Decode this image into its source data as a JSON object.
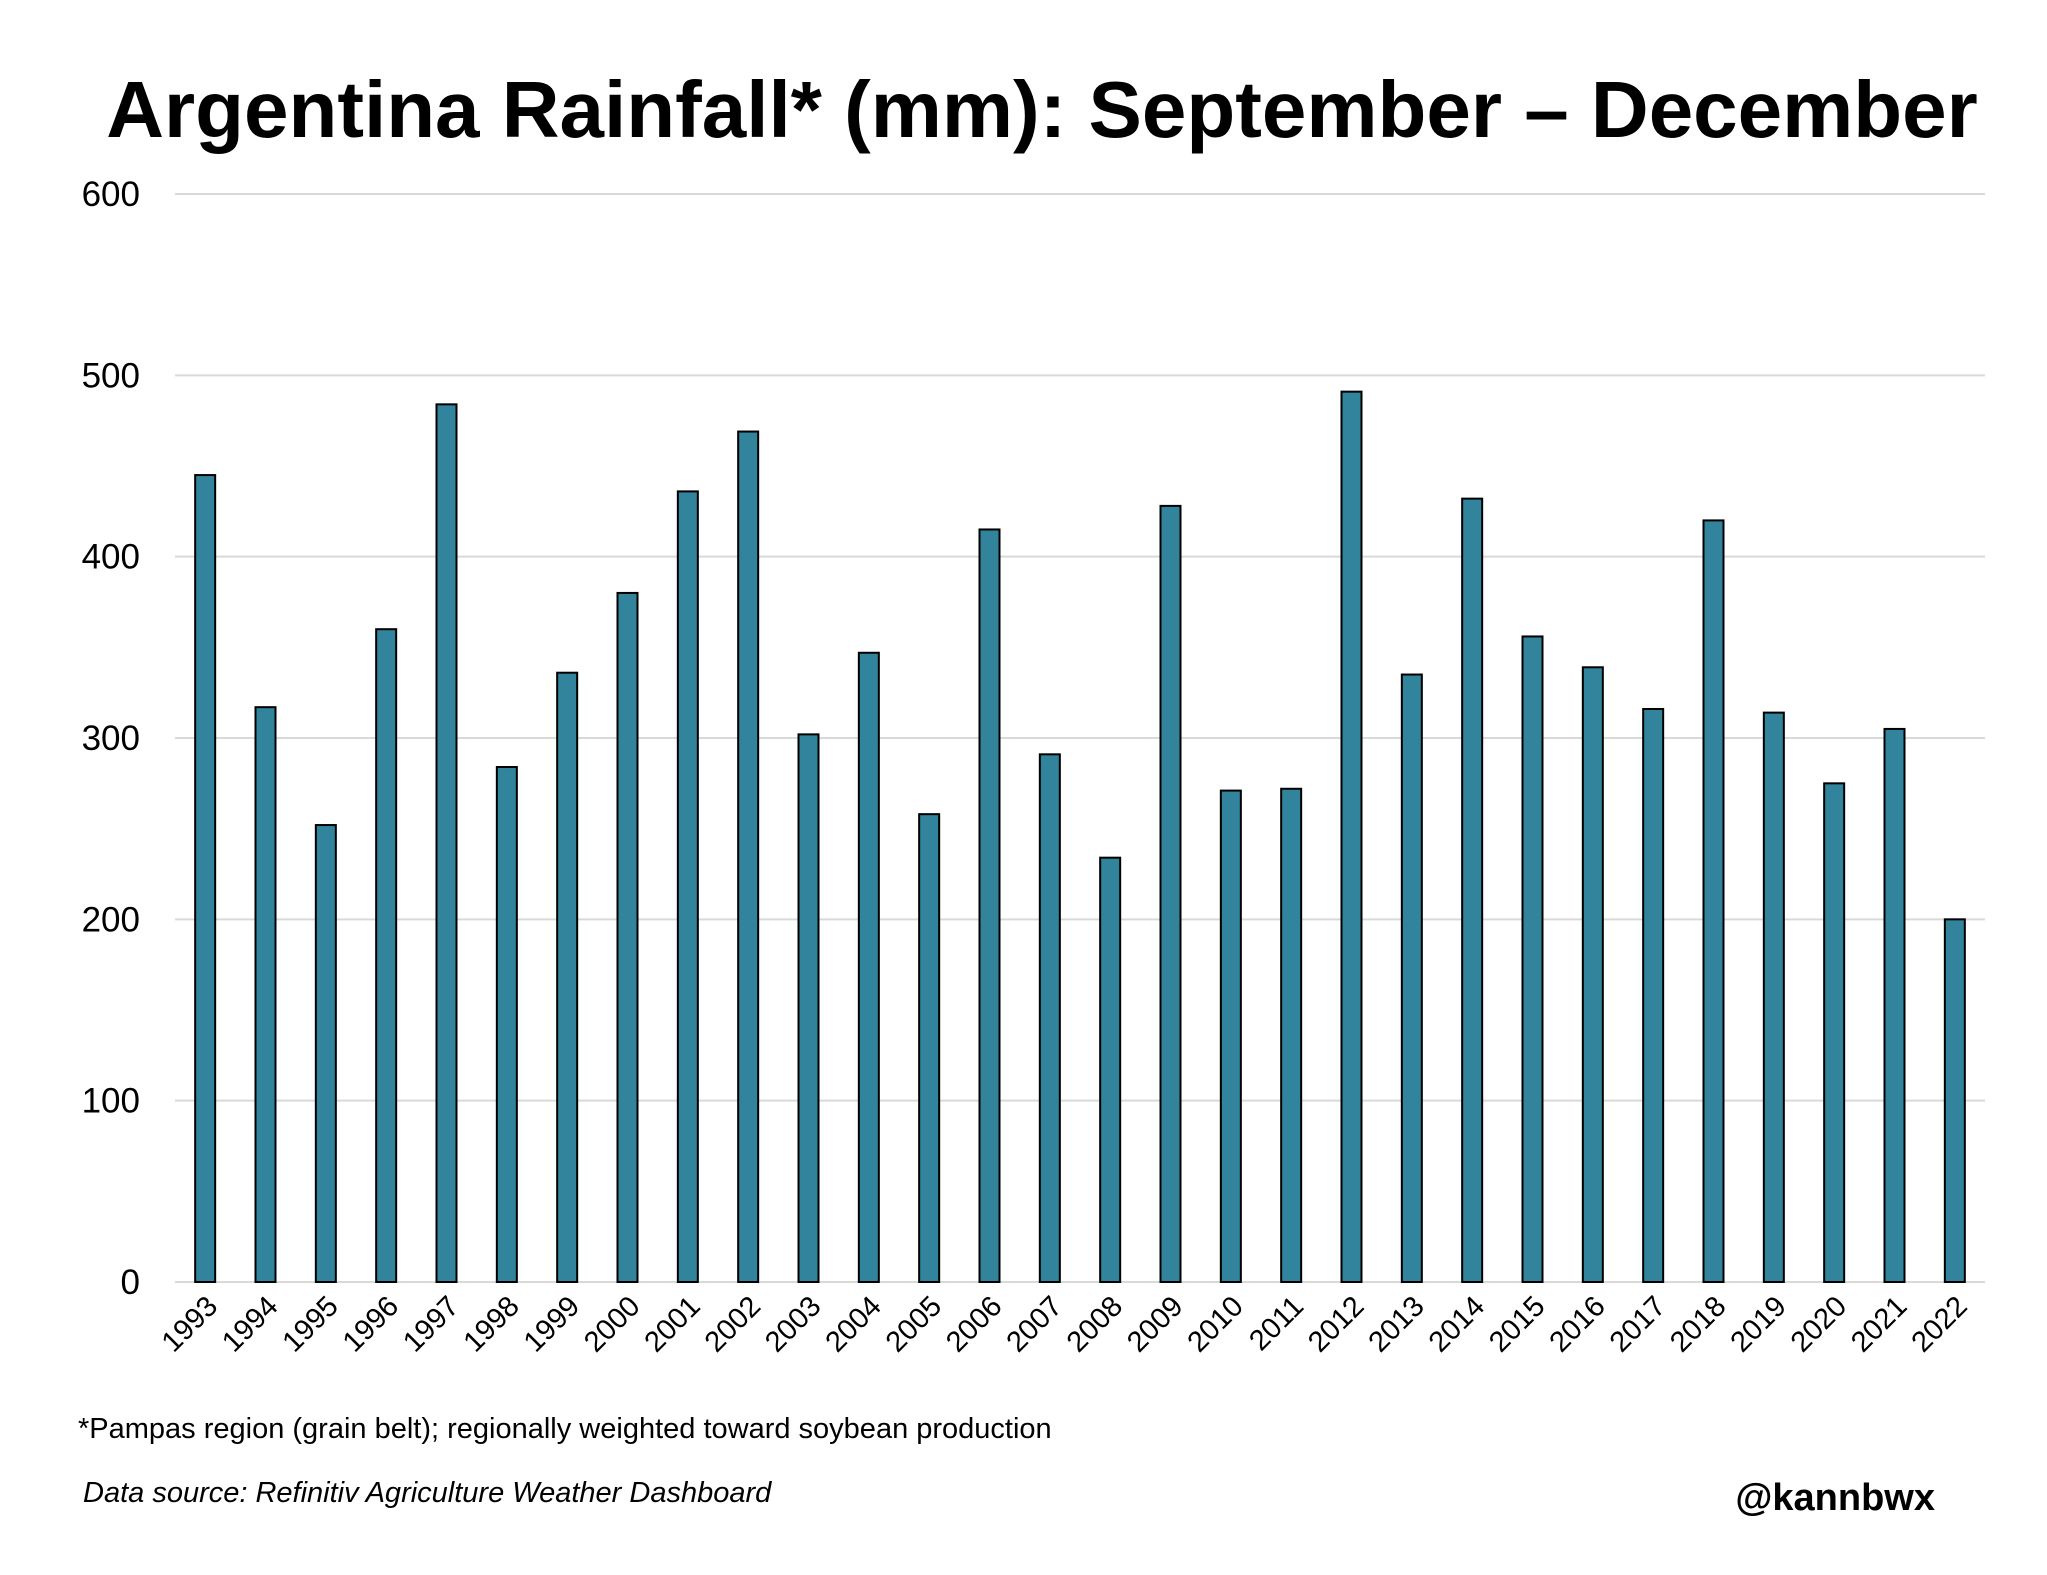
{
  "colors": {
    "bar_fill": "#31849B",
    "bar_stroke": "#000000",
    "gridline": "#D9D9D9",
    "text": "#000000"
  },
  "chart_data": {
    "type": "bar",
    "title": "Argentina Rainfall* (mm): September – December",
    "xlabel": "",
    "ylabel": "",
    "ylim": [
      0,
      600
    ],
    "yticks": [
      0,
      100,
      200,
      300,
      400,
      500,
      600
    ],
    "grid": true,
    "categories": [
      "1993",
      "1994",
      "1995",
      "1996",
      "1997",
      "1998",
      "1999",
      "2000",
      "2001",
      "2002",
      "2003",
      "2004",
      "2005",
      "2006",
      "2007",
      "2008",
      "2009",
      "2010",
      "2011",
      "2012",
      "2013",
      "2014",
      "2015",
      "2016",
      "2017",
      "2018",
      "2019",
      "2020",
      "2021",
      "2022"
    ],
    "values": [
      445,
      317,
      252,
      360,
      484,
      284,
      336,
      380,
      436,
      469,
      302,
      347,
      258,
      415,
      291,
      234,
      428,
      271,
      272,
      491,
      335,
      432,
      356,
      339,
      316,
      420,
      314,
      275,
      305,
      200
    ]
  },
  "footnote": "*Pampas region (grain belt); regionally weighted toward soybean production",
  "source": "Data source: Refinitiv Agriculture Weather Dashboard",
  "handle": "@kannbwx"
}
